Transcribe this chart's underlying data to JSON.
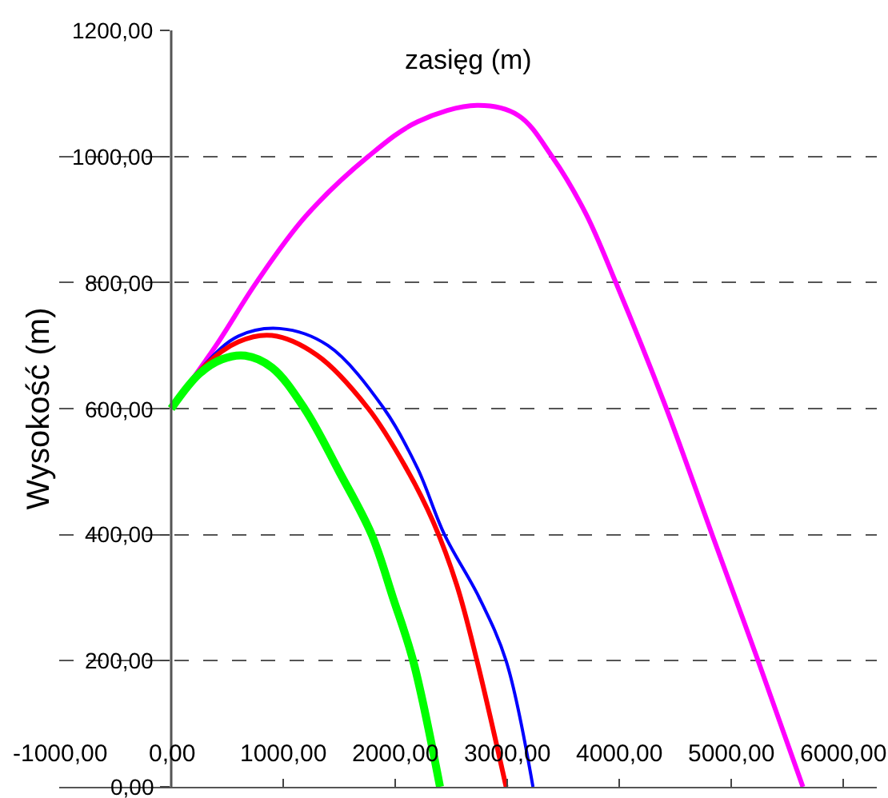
{
  "chart_data": {
    "type": "line",
    "xlabel": "zasięg (m)",
    "ylabel": "Wysokość (m)",
    "xlim": [
      -1000,
      6300
    ],
    "xticks": [
      {
        "value": -1000,
        "label": "-1000,00"
      },
      {
        "value": 0,
        "label": "0,00"
      },
      {
        "value": 1000,
        "label": "1000,00"
      },
      {
        "value": 2000,
        "label": "2000,00"
      },
      {
        "value": 3000,
        "label": "3000,00"
      },
      {
        "value": 4000,
        "label": "4000,00"
      },
      {
        "value": 5000,
        "label": "5000,00"
      },
      {
        "value": 6000,
        "label": "6000,00"
      }
    ],
    "ylim": [
      0,
      1200
    ],
    "yticks": [
      {
        "value": 0,
        "label": "0,00"
      },
      {
        "value": 200,
        "label": "200,00"
      },
      {
        "value": 400,
        "label": "400,00"
      },
      {
        "value": 600,
        "label": "600,00"
      },
      {
        "value": 800,
        "label": "800,00"
      },
      {
        "value": 1000,
        "label": "1000,00"
      },
      {
        "value": 1200,
        "label": "1200,00"
      }
    ],
    "grid": "y",
    "line_style": "solid",
    "marker": "none",
    "series": [
      {
        "color": "#ff00ff",
        "x": [
          0,
          400,
          760,
          1200,
          1760,
          2200,
          2730,
          3100,
          3400,
          3700,
          3970,
          4400,
          4830,
          5240,
          5640
        ],
        "values": [
          600,
          700,
          800,
          905,
          1000,
          1055,
          1081,
          1065,
          1000,
          910,
          800,
          610,
          400,
          200,
          0
        ]
      },
      {
        "color": "#0000ff",
        "x": [
          0,
          300,
          600,
          970,
          1400,
          1900,
          2200,
          2440,
          2750,
          2990,
          3230
        ],
        "values": [
          600,
          670,
          715,
          727,
          700,
          600,
          505,
          400,
          300,
          200,
          0
        ]
      },
      {
        "color": "#ff0000",
        "x": [
          0,
          300,
          600,
          900,
          1300,
          1760,
          2100,
          2340,
          2550,
          2730,
          2990
        ],
        "values": [
          600,
          668,
          706,
          716,
          685,
          600,
          505,
          420,
          320,
          200,
          0
        ]
      },
      {
        "color": "#00ff00",
        "x": [
          0,
          250,
          450,
          660,
          900,
          1190,
          1500,
          1790,
          1980,
          2160,
          2400
        ],
        "values": [
          600,
          655,
          678,
          684,
          665,
          600,
          500,
          400,
          300,
          200,
          0
        ]
      }
    ]
  }
}
